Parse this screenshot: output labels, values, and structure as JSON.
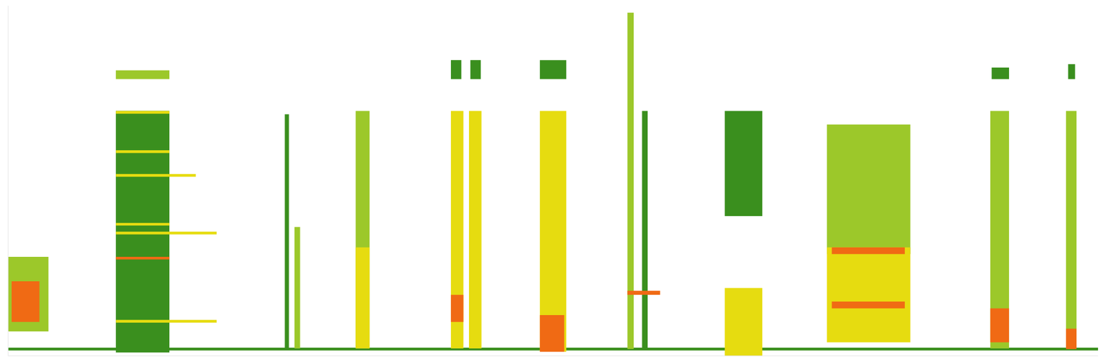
{
  "chart_data": {
    "type": "heatmap",
    "tick_labels": false,
    "xlim": [
      0,
      1568
    ],
    "ylim": [
      0,
      516
    ],
    "xticks": [],
    "yticks": [],
    "color_scale": {
      "levels": [
        1,
        2,
        3,
        4
      ],
      "colors": [
        "#3a8f1e",
        "#9cc82a",
        "#e6dc10",
        "#f06a14"
      ]
    },
    "cells": [
      {
        "x": [
          0,
          1568
        ],
        "y": [
          8,
          12
        ],
        "level": 1
      },
      {
        "x": [
          0,
          58
        ],
        "y": [
          36,
          146
        ],
        "level": 2
      },
      {
        "x": [
          5,
          45
        ],
        "y": [
          50,
          110
        ],
        "level": 4
      },
      {
        "x": [
          155,
          232
        ],
        "y": [
          5,
          361
        ],
        "level": 1
      },
      {
        "x": [
          155,
          232
        ],
        "y": [
          408,
          421
        ],
        "level": 2
      },
      {
        "x": [
          155,
          232
        ],
        "y": [
          357,
          361
        ],
        "level": 3
      },
      {
        "x": [
          155,
          232
        ],
        "y": [
          299,
          303
        ],
        "level": 3
      },
      {
        "x": [
          155,
          270
        ],
        "y": [
          264,
          268
        ],
        "level": 3
      },
      {
        "x": [
          155,
          232
        ],
        "y": [
          192,
          196
        ],
        "level": 3
      },
      {
        "x": [
          155,
          300
        ],
        "y": [
          179,
          183
        ],
        "level": 3
      },
      {
        "x": [
          155,
          232
        ],
        "y": [
          142,
          146
        ],
        "level": 4
      },
      {
        "x": [
          155,
          300
        ],
        "y": [
          49,
          53
        ],
        "level": 3
      },
      {
        "x": [
          398,
          404
        ],
        "y": [
          11,
          356
        ],
        "level": 1
      },
      {
        "x": [
          412,
          420
        ],
        "y": [
          11,
          190
        ],
        "level": 2
      },
      {
        "x": [
          500,
          520
        ],
        "y": [
          11,
          361
        ],
        "level": 2
      },
      {
        "x": [
          500,
          520
        ],
        "y": [
          11,
          160
        ],
        "level": 3
      },
      {
        "x": [
          637,
          655
        ],
        "y": [
          11,
          361
        ],
        "level": 3
      },
      {
        "x": [
          663,
          681
        ],
        "y": [
          11,
          361
        ],
        "level": 3
      },
      {
        "x": [
          637,
          655
        ],
        "y": [
          50,
          90
        ],
        "level": 4
      },
      {
        "x": [
          637,
          652
        ],
        "y": [
          408,
          436
        ],
        "level": 1
      },
      {
        "x": [
          665,
          680
        ],
        "y": [
          408,
          436
        ],
        "level": 1
      },
      {
        "x": [
          765,
          803
        ],
        "y": [
          6,
          361
        ],
        "level": 3
      },
      {
        "x": [
          765,
          803
        ],
        "y": [
          408,
          436
        ],
        "level": 1
      },
      {
        "x": [
          765,
          800
        ],
        "y": [
          6,
          60
        ],
        "level": 4
      },
      {
        "x": [
          891,
          900
        ],
        "y": [
          10,
          506
        ],
        "level": 2
      },
      {
        "x": [
          912,
          920
        ],
        "y": [
          11,
          361
        ],
        "level": 1
      },
      {
        "x": [
          891,
          938
        ],
        "y": [
          90,
          96
        ],
        "level": 4
      },
      {
        "x": [
          1031,
          1085
        ],
        "y": [
          206,
          361
        ],
        "level": 1
      },
      {
        "x": [
          1031,
          1085
        ],
        "y": [
          0,
          100
        ],
        "level": 3
      },
      {
        "x": [
          1178,
          1298
        ],
        "y": [
          150,
          341
        ],
        "level": 2
      },
      {
        "x": [
          1178,
          1298
        ],
        "y": [
          20,
          160
        ],
        "level": 3
      },
      {
        "x": [
          1185,
          1290
        ],
        "y": [
          150,
          160
        ],
        "level": 4
      },
      {
        "x": [
          1185,
          1290
        ],
        "y": [
          70,
          80
        ],
        "level": 4
      },
      {
        "x": [
          1413,
          1440
        ],
        "y": [
          11,
          361
        ],
        "level": 2
      },
      {
        "x": [
          1413,
          1440
        ],
        "y": [
          20,
          70
        ],
        "level": 4
      },
      {
        "x": [
          1415,
          1440
        ],
        "y": [
          408,
          425
        ],
        "level": 1
      },
      {
        "x": [
          1522,
          1537
        ],
        "y": [
          10,
          361
        ],
        "level": 2
      },
      {
        "x": [
          1522,
          1537
        ],
        "y": [
          10,
          40
        ],
        "level": 4
      },
      {
        "x": [
          1525,
          1535
        ],
        "y": [
          408,
          430
        ],
        "level": 1
      }
    ]
  }
}
